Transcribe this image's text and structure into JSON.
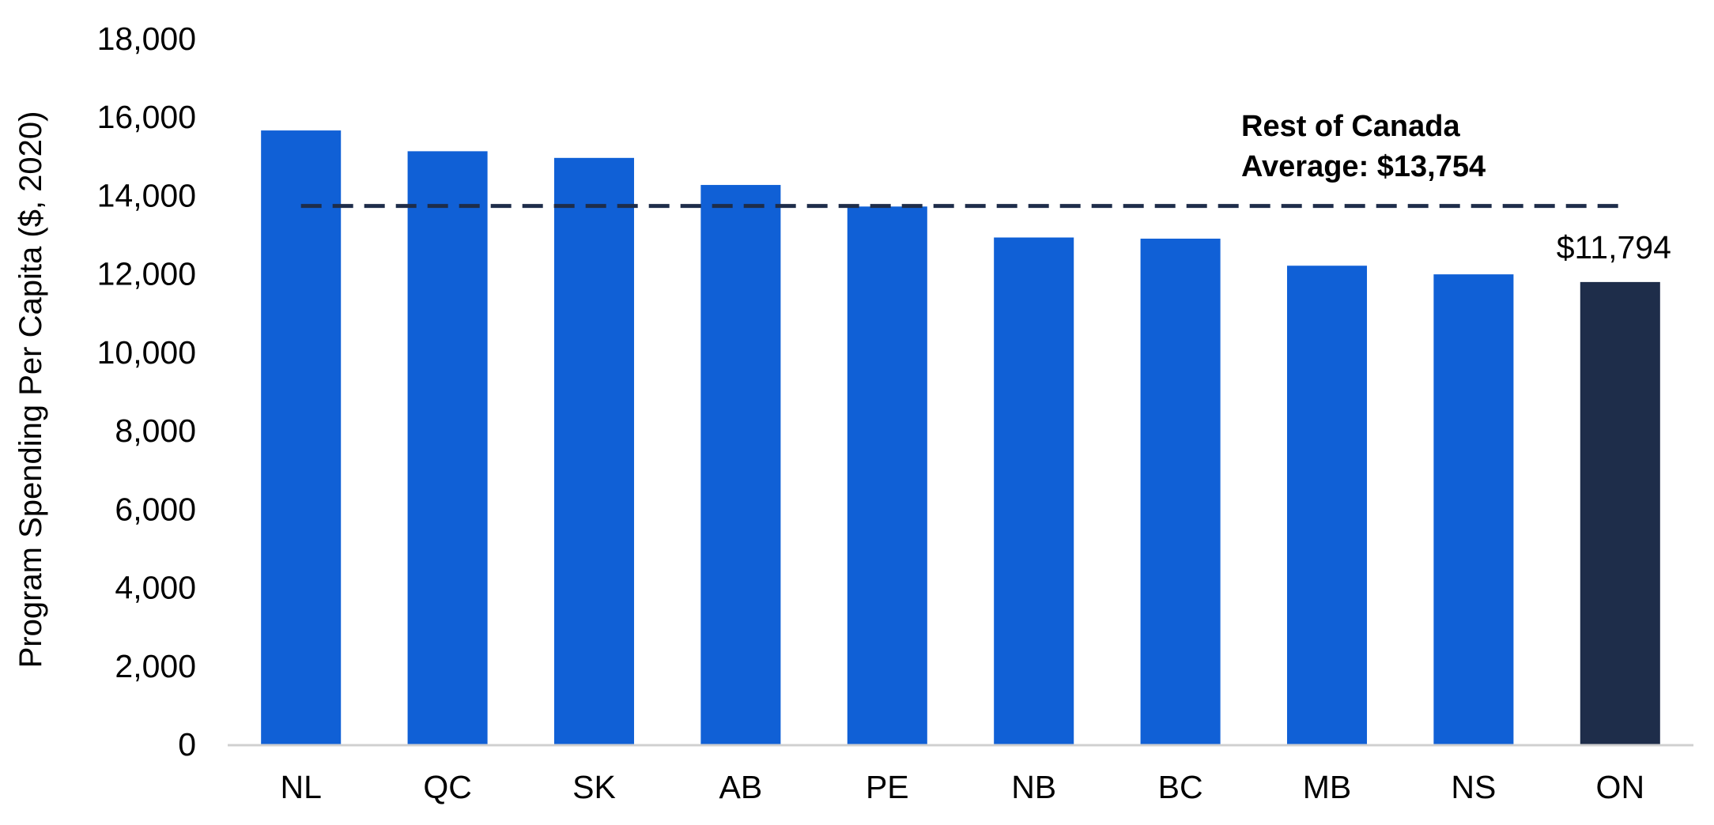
{
  "chart_data": {
    "type": "bar",
    "ylabel": "Program Spending Per Capita ($, 2020)",
    "xlabel": "",
    "ylim": [
      0,
      18000
    ],
    "yticks": [
      0,
      2000,
      4000,
      6000,
      8000,
      10000,
      12000,
      14000,
      16000,
      18000
    ],
    "ytick_labels": [
      "0",
      "2,000",
      "4,000",
      "6,000",
      "8,000",
      "10,000",
      "12,000",
      "14,000",
      "16,000",
      "18,000"
    ],
    "grid": false,
    "legend": "none",
    "categories": [
      "NL",
      "QC",
      "SK",
      "AB",
      "PE",
      "NB",
      "BC",
      "MB",
      "NS",
      "ON"
    ],
    "values": [
      15660,
      15130,
      14960,
      14270,
      13720,
      12930,
      12900,
      12210,
      11990,
      11794
    ],
    "bar_colors": [
      "#1060d6",
      "#1060d6",
      "#1060d6",
      "#1060d6",
      "#1060d6",
      "#1060d6",
      "#1060d6",
      "#1060d6",
      "#1060d6",
      "#1e2d4a"
    ],
    "reference_line": {
      "value": 13754,
      "style": "dashed",
      "color": "#1e2d4a",
      "label_lines": [
        "Rest of Canada",
        "Average: $13,754"
      ]
    },
    "data_labels": [
      {
        "category": "ON",
        "text": "$11,794"
      }
    ]
  },
  "colors": {
    "bar": "#1060d6",
    "highlight_bar": "#1e2d4a",
    "axis_line": "#d0d0d0"
  }
}
